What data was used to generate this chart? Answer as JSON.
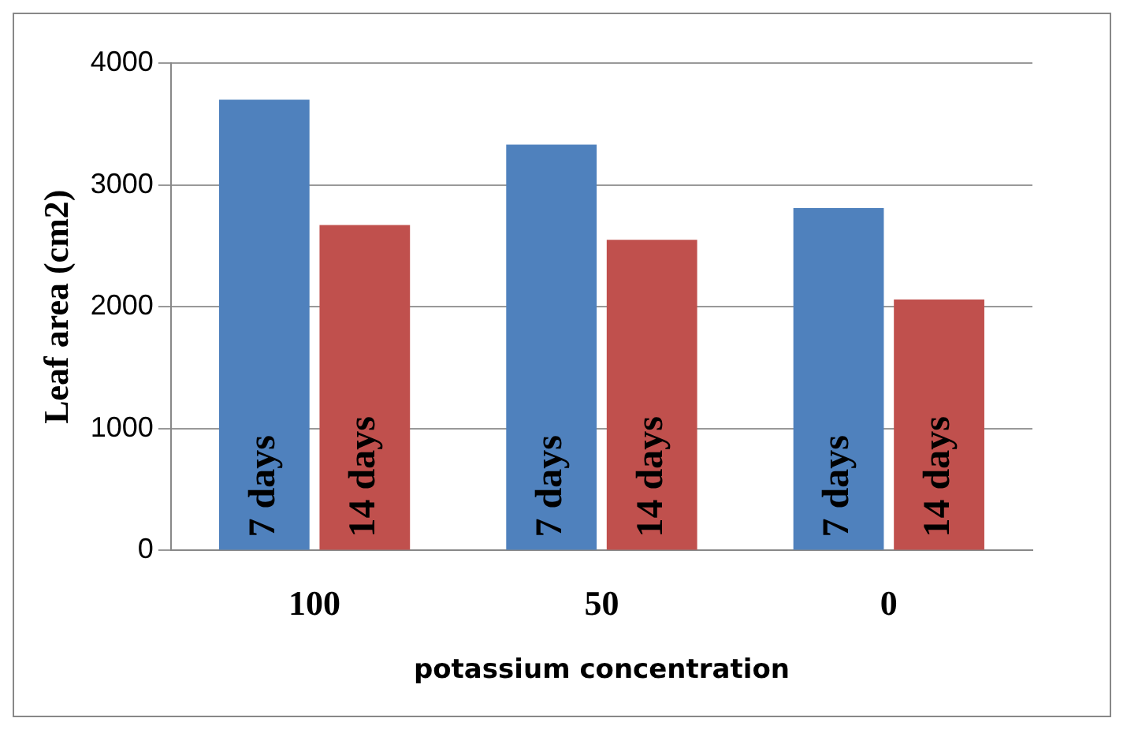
{
  "chart_data": {
    "type": "bar",
    "categories": [
      "100",
      "50",
      "0"
    ],
    "series": [
      {
        "name": "7 days",
        "color": "#4f81bd",
        "values": [
          3700,
          3330,
          2810
        ]
      },
      {
        "name": "14 days",
        "color": "#c0504d",
        "values": [
          2670,
          2550,
          2060
        ]
      }
    ],
    "ylim": [
      0,
      4000
    ],
    "yticks": [
      0,
      1000,
      2000,
      3000,
      4000
    ],
    "grid": "y",
    "legend": false,
    "xlabel": "potassium concentration",
    "ylabel": "Leaf area (cm2)"
  }
}
